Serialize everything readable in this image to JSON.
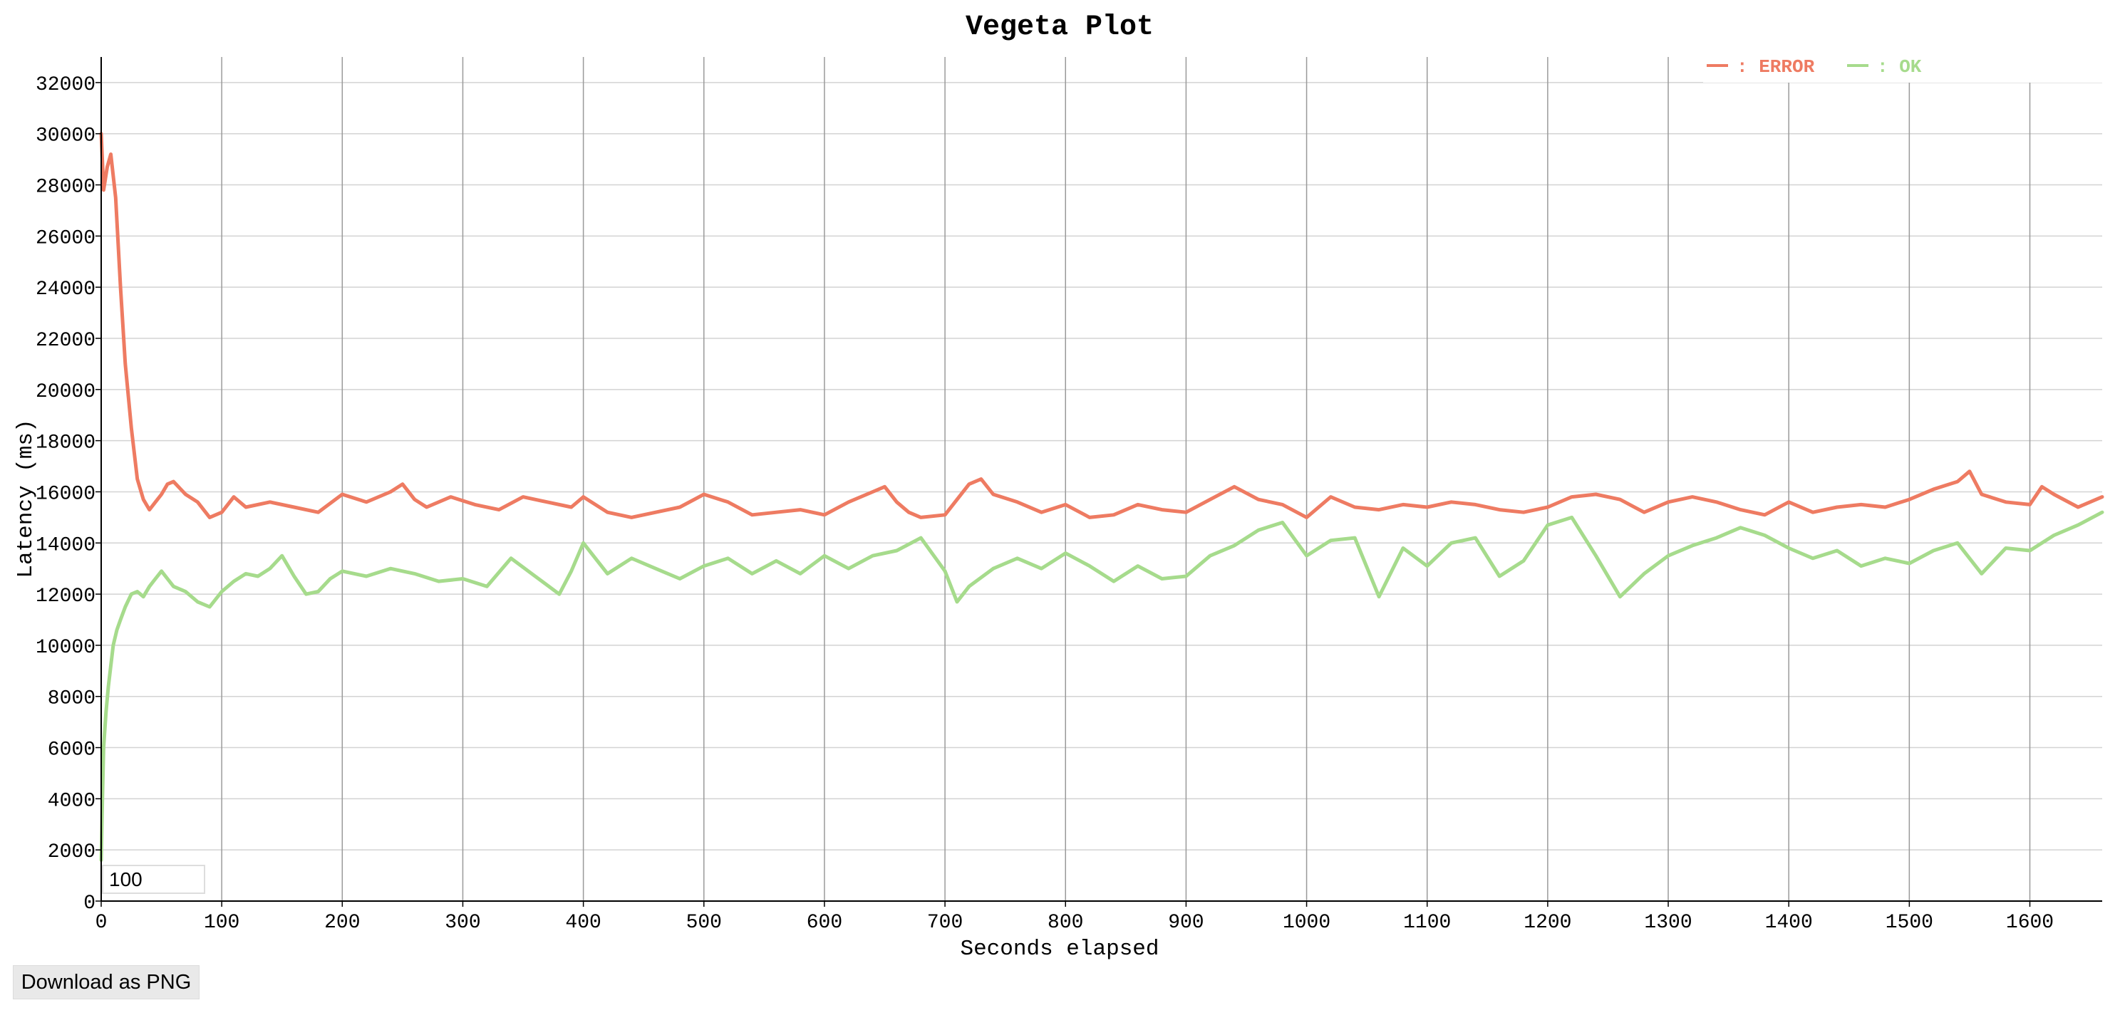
{
  "chart_data": {
    "type": "line",
    "title": "Vegeta Plot",
    "xlabel": "Seconds elapsed",
    "ylabel": "Latency (ms)",
    "xlim": [
      0,
      1660
    ],
    "ylim": [
      0,
      33000
    ],
    "x_ticks": [
      0,
      100,
      200,
      300,
      400,
      500,
      600,
      700,
      800,
      900,
      1000,
      1100,
      1200,
      1300,
      1400,
      1500,
      1600
    ],
    "y_ticks": [
      0,
      2000,
      4000,
      6000,
      8000,
      10000,
      12000,
      14000,
      16000,
      18000,
      20000,
      22000,
      24000,
      26000,
      28000,
      30000,
      32000
    ],
    "grid": true,
    "legend_position": "top-right",
    "series": [
      {
        "name": "ERROR",
        "color": "#ee7b62",
        "x": [
          0,
          2,
          5,
          8,
          12,
          16,
          20,
          25,
          30,
          35,
          40,
          45,
          50,
          55,
          60,
          70,
          80,
          90,
          100,
          110,
          120,
          140,
          160,
          180,
          200,
          220,
          240,
          250,
          260,
          270,
          290,
          310,
          330,
          350,
          370,
          390,
          400,
          420,
          440,
          460,
          480,
          500,
          520,
          540,
          560,
          580,
          600,
          620,
          640,
          650,
          660,
          670,
          680,
          700,
          720,
          730,
          740,
          760,
          780,
          800,
          820,
          840,
          860,
          880,
          900,
          920,
          940,
          960,
          980,
          1000,
          1020,
          1040,
          1060,
          1080,
          1100,
          1120,
          1140,
          1160,
          1180,
          1200,
          1220,
          1240,
          1260,
          1280,
          1300,
          1320,
          1340,
          1360,
          1380,
          1400,
          1420,
          1440,
          1460,
          1480,
          1500,
          1520,
          1540,
          1550,
          1560,
          1580,
          1600,
          1610,
          1620,
          1640,
          1660
        ],
        "y": [
          30000,
          27800,
          28700,
          29200,
          27500,
          24000,
          21000,
          18500,
          16500,
          15700,
          15300,
          15600,
          15900,
          16300,
          16400,
          15900,
          15600,
          15000,
          15200,
          15800,
          15400,
          15600,
          15400,
          15200,
          15900,
          15600,
          16000,
          16300,
          15700,
          15400,
          15800,
          15500,
          15300,
          15800,
          15600,
          15400,
          15800,
          15200,
          15000,
          15200,
          15400,
          15900,
          15600,
          15100,
          15200,
          15300,
          15100,
          15600,
          16000,
          16200,
          15600,
          15200,
          15000,
          15100,
          16300,
          16500,
          15900,
          15600,
          15200,
          15500,
          15000,
          15100,
          15500,
          15300,
          15200,
          15700,
          16200,
          15700,
          15500,
          15000,
          15800,
          15400,
          15300,
          15500,
          15400,
          15600,
          15500,
          15300,
          15200,
          15400,
          15800,
          15900,
          15700,
          15200,
          15600,
          15800,
          15600,
          15300,
          15100,
          15600,
          15200,
          15400,
          15500,
          15400,
          15700,
          16100,
          16400,
          16800,
          15900,
          15600,
          15500,
          16200,
          15900,
          15400,
          15800
        ]
      },
      {
        "name": "OK",
        "color": "#a6db8c",
        "x": [
          0,
          1,
          2,
          4,
          6,
          8,
          10,
          13,
          16,
          20,
          25,
          30,
          35,
          40,
          45,
          50,
          55,
          60,
          70,
          80,
          90,
          100,
          110,
          120,
          130,
          140,
          150,
          160,
          170,
          180,
          190,
          200,
          220,
          240,
          260,
          280,
          300,
          320,
          340,
          360,
          380,
          390,
          400,
          420,
          440,
          460,
          480,
          500,
          520,
          540,
          560,
          580,
          600,
          620,
          640,
          660,
          680,
          700,
          710,
          720,
          740,
          760,
          780,
          800,
          820,
          840,
          860,
          880,
          900,
          920,
          940,
          960,
          980,
          1000,
          1020,
          1040,
          1060,
          1080,
          1100,
          1120,
          1140,
          1160,
          1180,
          1200,
          1220,
          1240,
          1260,
          1280,
          1300,
          1320,
          1340,
          1360,
          1380,
          1400,
          1420,
          1440,
          1460,
          1480,
          1500,
          1520,
          1540,
          1560,
          1580,
          1600,
          1620,
          1640,
          1660
        ],
        "y": [
          1600,
          4000,
          6000,
          7400,
          8400,
          9200,
          10000,
          10600,
          11000,
          11500,
          12000,
          12100,
          11900,
          12300,
          12600,
          12900,
          12600,
          12300,
          12100,
          11700,
          11500,
          12100,
          12500,
          12800,
          12700,
          13000,
          13500,
          12700,
          12000,
          12100,
          12600,
          12900,
          12700,
          13000,
          12800,
          12500,
          12600,
          12300,
          13400,
          12700,
          12000,
          12900,
          14000,
          12800,
          13400,
          13000,
          12600,
          13100,
          13400,
          12800,
          13300,
          12800,
          13500,
          13000,
          13500,
          13700,
          14200,
          12900,
          11700,
          12300,
          13000,
          13400,
          13000,
          13600,
          13100,
          12500,
          13100,
          12600,
          12700,
          13500,
          13900,
          14500,
          14800,
          13500,
          14100,
          14200,
          11900,
          13800,
          13100,
          14000,
          14200,
          12700,
          13300,
          14700,
          15000,
          13500,
          11900,
          12800,
          13500,
          13900,
          14200,
          14600,
          14300,
          13800,
          13400,
          13700,
          13100,
          13400,
          13200,
          13700,
          14000,
          12800,
          13800,
          13700,
          14300,
          14700,
          15200
        ]
      }
    ]
  },
  "legend": {
    "error_text": ": ERROR",
    "ok_text": ": OK"
  },
  "controls": {
    "roller_value": "100",
    "download_label": "Download as PNG"
  }
}
